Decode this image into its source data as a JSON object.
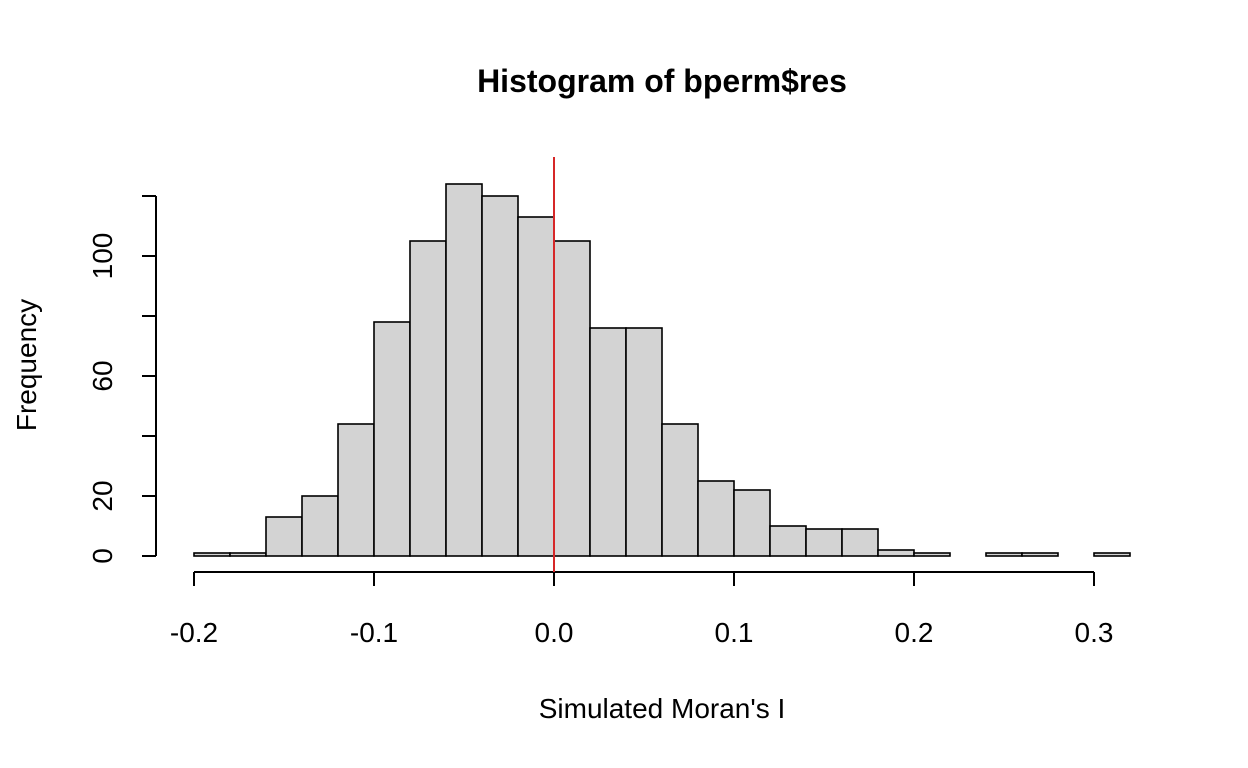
{
  "chart_data": {
    "type": "bar",
    "title": "Histogram of bperm$res",
    "xlabel": "Simulated Moran's I",
    "ylabel": "Frequency",
    "bin_edges": [
      -0.2,
      -0.18,
      -0.16,
      -0.14,
      -0.12,
      -0.1,
      -0.08,
      -0.06,
      -0.04,
      -0.02,
      0.0,
      0.02,
      0.04,
      0.06,
      0.08,
      0.1,
      0.12,
      0.14,
      0.16,
      0.18,
      0.2,
      0.22,
      0.24,
      0.26,
      0.28,
      0.3,
      0.32
    ],
    "values": [
      1,
      1,
      13,
      20,
      44,
      78,
      105,
      124,
      120,
      113,
      105,
      76,
      76,
      44,
      25,
      22,
      10,
      9,
      9,
      2,
      1,
      0,
      1,
      1,
      0,
      1
    ],
    "xlim": [
      -0.2,
      0.32
    ],
    "ylim": [
      0,
      124
    ],
    "x_ticks": [
      -0.2,
      -0.1,
      0.0,
      0.1,
      0.2,
      0.3
    ],
    "x_tick_labels": [
      "-0.2",
      "-0.1",
      "0.0",
      "0.1",
      "0.2",
      "0.3"
    ],
    "y_ticks": [
      0,
      20,
      40,
      60,
      80,
      100,
      120
    ],
    "y_tick_labels": [
      "0",
      "20",
      "",
      "60",
      "",
      "100",
      ""
    ],
    "reference_line": {
      "x": 0.0,
      "color": "#d62728"
    },
    "bar_color": "#d3d3d3",
    "grid": false
  }
}
